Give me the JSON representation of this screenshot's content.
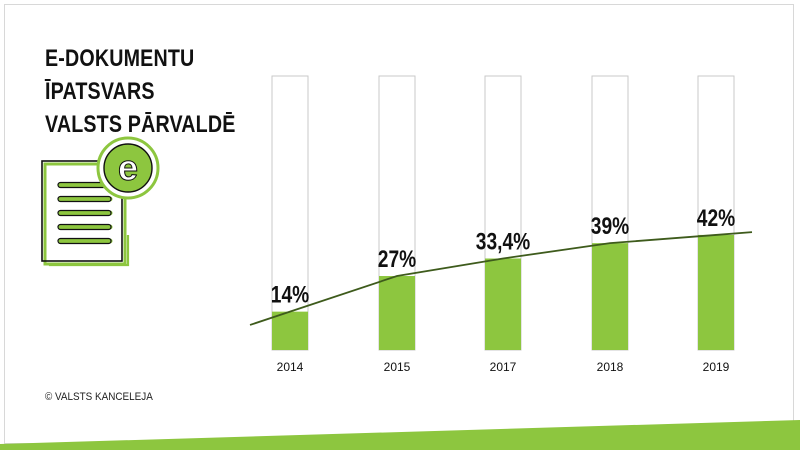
{
  "title_lines": [
    "E-DOKUMENTU",
    "ĪPATSVARS",
    "VALSTS PĀRVALDĒ"
  ],
  "icon": {
    "name": "e-document-icon",
    "glyph": "e"
  },
  "copyright": "© VALSTS KANCELEJA",
  "colors": {
    "accent": "#8dc63f",
    "trend": "#3e5b1c",
    "outline": "#c9c9c9",
    "text": "#111111"
  },
  "chart_data": {
    "type": "bar",
    "categories": [
      "2014",
      "2015",
      "2017",
      "2018",
      "2019"
    ],
    "values": [
      14,
      27,
      33.4,
      39,
      42
    ],
    "value_labels": [
      "14%",
      "27%",
      "33,4%",
      "39%",
      "42%"
    ],
    "ylim": [
      0,
      100
    ],
    "trend_line": true,
    "grid": false,
    "legend": "none"
  }
}
